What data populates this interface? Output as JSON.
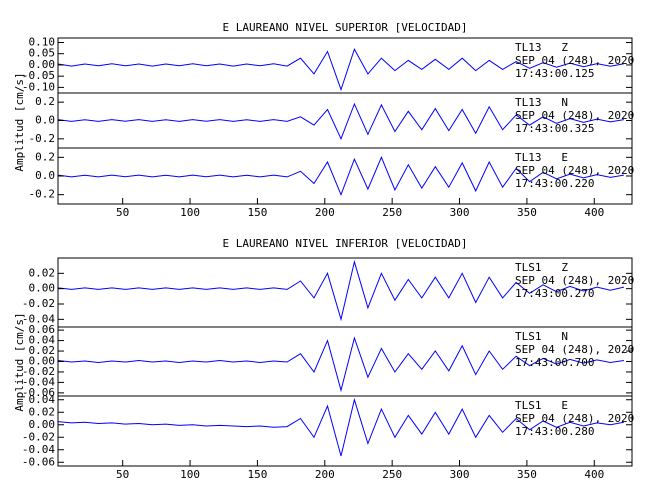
{
  "groups": [
    {
      "title": "E LAUREANO NIVEL SUPERIOR [VELOCIDAD]",
      "ylabel": "Amplitud [cm/s]"
    },
    {
      "title": "E LAUREANO NIVEL INFERIOR [VELOCIDAD]",
      "ylabel": "Amplitud [cm/s]"
    }
  ],
  "chart_data": [
    {
      "type": "line",
      "color": "#0000ff",
      "annotations": [
        "TL13   Z",
        "SEP 04 (248), 2020",
        "17:43:00.125"
      ],
      "xlim": [
        2,
        428
      ],
      "ylim": [
        -0.125,
        0.12
      ],
      "yticks": [
        {
          "value": 0.1,
          "label": "0.10"
        },
        0.05,
        {
          "value": 0,
          "label": "0.00"
        },
        -0.05,
        {
          "value": -0.1,
          "label": "-0.10"
        }
      ],
      "x": [
        2,
        12,
        22,
        32,
        42,
        52,
        62,
        72,
        82,
        92,
        102,
        112,
        122,
        132,
        142,
        152,
        162,
        172,
        182,
        192,
        202,
        212,
        222,
        232,
        242,
        252,
        262,
        272,
        282,
        292,
        302,
        312,
        322,
        332,
        342,
        352,
        362,
        372,
        382,
        392,
        402,
        412,
        422
      ],
      "values": [
        0.004,
        -0.005,
        0.004,
        -0.004,
        0.005,
        -0.004,
        0.004,
        -0.005,
        0.004,
        -0.004,
        0.005,
        -0.004,
        0.004,
        -0.005,
        0.004,
        -0.004,
        0.005,
        -0.005,
        0.03,
        -0.04,
        0.06,
        -0.11,
        0.07,
        -0.04,
        0.03,
        -0.025,
        0.02,
        -0.02,
        0.025,
        -0.02,
        0.03,
        -0.025,
        0.02,
        -0.02,
        0.015,
        -0.015,
        0.01,
        -0.01,
        0.008,
        -0.008,
        0.006,
        -0.006,
        0.005
      ]
    },
    {
      "type": "line",
      "color": "#0000ff",
      "annotations": [
        "TL13   N",
        "SEP 04 (248), 2020",
        "17:43:00.325"
      ],
      "xlim": [
        2,
        428
      ],
      "ylim": [
        -0.3,
        0.3
      ],
      "yticks": [
        0.2,
        {
          "value": 0,
          "label": "0.0"
        },
        -0.2
      ],
      "x": [
        2,
        12,
        22,
        32,
        42,
        52,
        62,
        72,
        82,
        92,
        102,
        112,
        122,
        132,
        142,
        152,
        162,
        172,
        182,
        192,
        202,
        212,
        222,
        232,
        242,
        252,
        262,
        272,
        282,
        292,
        302,
        312,
        322,
        332,
        342,
        352,
        362,
        372,
        382,
        392,
        402,
        412,
        422
      ],
      "values": [
        0.01,
        -0.01,
        0.008,
        -0.01,
        0.01,
        -0.008,
        0.01,
        -0.01,
        0.008,
        -0.01,
        0.01,
        -0.008,
        0.01,
        -0.01,
        0.008,
        -0.01,
        0.01,
        -0.01,
        0.04,
        -0.05,
        0.12,
        -0.2,
        0.18,
        -0.15,
        0.17,
        -0.12,
        0.1,
        -0.1,
        0.13,
        -0.11,
        0.12,
        -0.14,
        0.15,
        -0.1,
        0.06,
        -0.05,
        0.04,
        -0.03,
        0.02,
        -0.02,
        0.015,
        -0.015,
        0.01
      ]
    },
    {
      "type": "line",
      "color": "#0000ff",
      "annotations": [
        "TL13   E",
        "SEP 04 (248), 2020",
        "17:43:00.220"
      ],
      "xlim": [
        2,
        428
      ],
      "ylim": [
        -0.3,
        0.3
      ],
      "yticks": [
        0.2,
        {
          "value": 0,
          "label": "0.0"
        },
        -0.2
      ],
      "xticks": [
        50,
        100,
        150,
        200,
        250,
        300,
        350,
        400
      ],
      "x": [
        2,
        12,
        22,
        32,
        42,
        52,
        62,
        72,
        82,
        92,
        102,
        112,
        122,
        132,
        142,
        152,
        162,
        172,
        182,
        192,
        202,
        212,
        222,
        232,
        242,
        252,
        262,
        272,
        282,
        292,
        302,
        312,
        322,
        332,
        342,
        352,
        362,
        372,
        382,
        392,
        402,
        412,
        422
      ],
      "values": [
        0.01,
        -0.01,
        0.008,
        -0.01,
        0.01,
        -0.008,
        0.01,
        -0.01,
        0.008,
        -0.01,
        0.01,
        -0.008,
        0.01,
        -0.01,
        0.008,
        -0.01,
        0.01,
        -0.01,
        0.05,
        -0.08,
        0.15,
        -0.2,
        0.18,
        -0.14,
        0.2,
        -0.15,
        0.12,
        -0.13,
        0.1,
        -0.12,
        0.14,
        -0.16,
        0.15,
        -0.12,
        0.08,
        -0.06,
        0.04,
        -0.03,
        0.02,
        -0.02,
        0.015,
        -0.015,
        0.01
      ]
    },
    {
      "type": "line",
      "color": "#0000ff",
      "annotations": [
        "TLS1   Z",
        "SEP 04 (248), 2020",
        "17:43:00.270"
      ],
      "xlim": [
        2,
        428
      ],
      "ylim": [
        -0.05,
        0.04
      ],
      "yticks": [
        0.02,
        {
          "value": 0,
          "label": "0.00"
        },
        -0.02,
        -0.04
      ],
      "x": [
        2,
        12,
        22,
        32,
        42,
        52,
        62,
        72,
        82,
        92,
        102,
        112,
        122,
        132,
        142,
        152,
        162,
        172,
        182,
        192,
        202,
        212,
        222,
        232,
        242,
        252,
        262,
        272,
        282,
        292,
        302,
        312,
        322,
        332,
        342,
        352,
        362,
        372,
        382,
        392,
        402,
        412,
        422
      ],
      "values": [
        0.001,
        -0.001,
        0.001,
        -0.001,
        0.001,
        -0.001,
        0.001,
        -0.001,
        0.001,
        -0.001,
        0.001,
        -0.001,
        0.001,
        -0.001,
        0.001,
        -0.001,
        0.001,
        -0.001,
        0.01,
        -0.012,
        0.02,
        -0.04,
        0.035,
        -0.025,
        0.02,
        -0.015,
        0.012,
        -0.012,
        0.015,
        -0.012,
        0.02,
        -0.018,
        0.015,
        -0.012,
        0.008,
        -0.006,
        0.005,
        -0.004,
        0.003,
        -0.003,
        0.002,
        -0.002,
        0.002
      ]
    },
    {
      "type": "line",
      "color": "#0000ff",
      "annotations": [
        "TLS1   N",
        "SEP 04 (248), 2020",
        "17:43:00.700"
      ],
      "xlim": [
        2,
        428
      ],
      "ylim": [
        -0.066,
        0.066
      ],
      "yticks": [
        0.06,
        0.04,
        0.02,
        {
          "value": 0,
          "label": "0.00"
        },
        -0.02,
        -0.04,
        -0.06
      ],
      "x": [
        2,
        12,
        22,
        32,
        42,
        52,
        62,
        72,
        82,
        92,
        102,
        112,
        122,
        132,
        142,
        152,
        162,
        172,
        182,
        192,
        202,
        212,
        222,
        232,
        242,
        252,
        262,
        272,
        282,
        292,
        302,
        312,
        322,
        332,
        342,
        352,
        362,
        372,
        382,
        392,
        402,
        412,
        422
      ],
      "values": [
        0.002,
        -0.001,
        0.001,
        -0.002,
        0.001,
        -0.001,
        0.002,
        -0.001,
        0.001,
        -0.002,
        0.001,
        -0.001,
        0.002,
        -0.001,
        0.001,
        -0.002,
        0.001,
        -0.001,
        0.015,
        -0.02,
        0.04,
        -0.055,
        0.045,
        -0.03,
        0.025,
        -0.02,
        0.015,
        -0.015,
        0.02,
        -0.018,
        0.03,
        -0.025,
        0.02,
        -0.015,
        0.01,
        -0.008,
        0.006,
        -0.005,
        0.004,
        -0.003,
        0.003,
        -0.002,
        0.002
      ]
    },
    {
      "type": "line",
      "color": "#0000ff",
      "annotations": [
        "TLS1   E",
        "SEP 04 (248), 2020",
        "17:43:00.280"
      ],
      "xlim": [
        2,
        428
      ],
      "ylim": [
        -0.066,
        0.046
      ],
      "yticks": [
        0.04,
        0.02,
        {
          "value": 0,
          "label": "0.00"
        },
        -0.02,
        -0.04,
        -0.06
      ],
      "xticks": [
        50,
        100,
        150,
        200,
        250,
        300,
        350,
        400
      ],
      "x": [
        2,
        12,
        22,
        32,
        42,
        52,
        62,
        72,
        82,
        92,
        102,
        112,
        122,
        132,
        142,
        152,
        162,
        172,
        182,
        192,
        202,
        212,
        222,
        232,
        242,
        252,
        262,
        272,
        282,
        292,
        302,
        312,
        322,
        332,
        342,
        352,
        362,
        372,
        382,
        392,
        402,
        412,
        422
      ],
      "values": [
        0.005,
        0.003,
        0.004,
        0.002,
        0.003,
        0.001,
        0.002,
        0.0,
        0.001,
        -0.001,
        0.0,
        -0.002,
        -0.001,
        -0.002,
        -0.003,
        -0.002,
        -0.004,
        -0.003,
        0.01,
        -0.02,
        0.03,
        -0.05,
        0.04,
        -0.03,
        0.025,
        -0.02,
        0.015,
        -0.015,
        0.02,
        -0.015,
        0.025,
        -0.02,
        0.015,
        -0.012,
        0.01,
        -0.008,
        0.006,
        -0.004,
        0.004,
        -0.002,
        0.003,
        0.0,
        0.004
      ]
    }
  ]
}
